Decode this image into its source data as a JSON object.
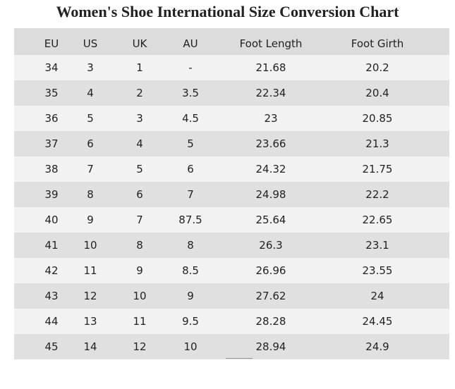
{
  "chart_data": {
    "type": "table",
    "title": "Women's Shoe International Size Conversion Chart",
    "columns": [
      "EU",
      "US",
      "UK",
      "AU",
      "Foot Length",
      "Foot Girth"
    ],
    "rows": [
      [
        "34",
        "3",
        "1",
        "-",
        "21.68",
        "20.2"
      ],
      [
        "35",
        "4",
        "2",
        "3.5",
        "22.34",
        "20.4"
      ],
      [
        "36",
        "5",
        "3",
        "4.5",
        "23",
        "20.85"
      ],
      [
        "37",
        "6",
        "4",
        "5",
        "23.66",
        "21.3"
      ],
      [
        "38",
        "7",
        "5",
        "6",
        "24.32",
        "21.75"
      ],
      [
        "39",
        "8",
        "6",
        "7",
        "24.98",
        "22.2"
      ],
      [
        "40",
        "9",
        "7",
        "87.5",
        "25.64",
        "22.65"
      ],
      [
        "41",
        "10",
        "8",
        "8",
        "26.3",
        "23.1"
      ],
      [
        "42",
        "11",
        "9",
        "8.5",
        "26.96",
        "23.55"
      ],
      [
        "43",
        "12",
        "10",
        "9",
        "27.62",
        "24"
      ],
      [
        "44",
        "13",
        "11",
        "9.5",
        "28.28",
        "24.45"
      ],
      [
        "45",
        "14",
        "12",
        "10",
        "28.94",
        "24.9"
      ]
    ],
    "colors": {
      "header_bg": "#dcdcdc",
      "row_light": "#f2f2f2",
      "row_dark": "#e0e0e0"
    }
  }
}
